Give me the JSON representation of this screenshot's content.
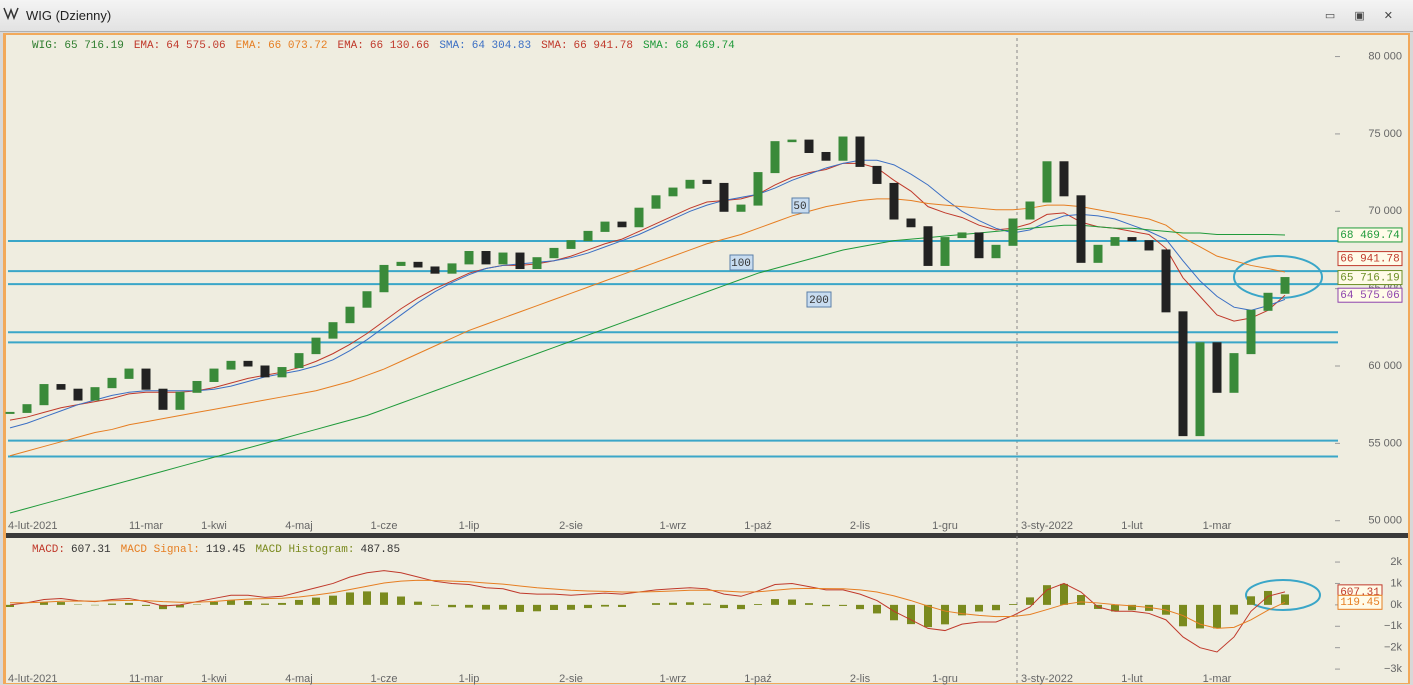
{
  "window": {
    "title": "WIG (Dzienny)"
  },
  "chart_data": [
    {
      "type": "candlestick",
      "legend_items": [
        {
          "name": "WIG:",
          "label": "65 716.19",
          "color": "#2e7d2e"
        },
        {
          "name": "EMA:",
          "label": "64 575.06",
          "color": "#c0392b"
        },
        {
          "name": "EMA:",
          "label": "66 073.72",
          "color": "#e67e22"
        },
        {
          "name": "EMA:",
          "label": "66 130.66",
          "color": "#c0392b"
        },
        {
          "name": "SMA:",
          "label": "64 304.83",
          "color": "#3b6fc4"
        },
        {
          "name": "SMA:",
          "label": "66 941.78",
          "color": "#c0392b"
        },
        {
          "name": "SMA:",
          "label": "68 469.74",
          "color": "#1f9a3a"
        }
      ],
      "categories": [
        "4-lut-2021",
        null,
        null,
        null,
        null,
        null,
        null,
        null,
        "11-mar",
        null,
        null,
        null,
        "1-kwi",
        null,
        null,
        null,
        null,
        "4-maj",
        null,
        null,
        null,
        null,
        "1-cze",
        null,
        null,
        null,
        null,
        "1-lip",
        null,
        null,
        null,
        null,
        null,
        "2-sie",
        null,
        null,
        null,
        null,
        null,
        "1-wrz",
        null,
        null,
        null,
        null,
        "1-paź",
        null,
        null,
        null,
        null,
        null,
        "2-lis",
        null,
        null,
        null,
        null,
        "1-gru",
        null,
        null,
        null,
        null,
        null,
        "3-sty-2022",
        null,
        null,
        null,
        null,
        "1-lut",
        null,
        null,
        null,
        null,
        "1-mar",
        null,
        null,
        null,
        null
      ],
      "closes": [
        57000,
        57500,
        58800,
        58500,
        57800,
        58600,
        59200,
        59800,
        58500,
        57200,
        58300,
        59000,
        59800,
        60300,
        60000,
        59300,
        59900,
        60800,
        61800,
        62800,
        63800,
        64800,
        66500,
        66700,
        66400,
        66000,
        66600,
        67400,
        66600,
        67300,
        66300,
        67000,
        67600,
        68100,
        68700,
        69300,
        69000,
        70200,
        71000,
        71500,
        72000,
        71800,
        70000,
        70400,
        72500,
        74500,
        74600,
        73800,
        73300,
        74800,
        72900,
        71800,
        69500,
        69000,
        66500,
        68300,
        68600,
        67000,
        67800,
        69500,
        70600,
        73200,
        71000,
        66700,
        67800,
        68300,
        68100,
        67500,
        63500,
        55500,
        61500,
        58300,
        60800,
        63600,
        64700,
        65716.19
      ],
      "up_color": "#3a8a3a",
      "down_color": "#222222",
      "lines": [
        {
          "color": "#c0392b",
          "values": [
            56500,
            56700,
            57000,
            57300,
            57500,
            57700,
            57900,
            58200,
            58300,
            58300,
            58300,
            58400,
            58600,
            58900,
            59200,
            59400,
            59600,
            59900,
            60300,
            60800,
            61400,
            62100,
            62900,
            63700,
            64400,
            65000,
            65500,
            66000,
            66300,
            66500,
            66500,
            66600,
            66800,
            67100,
            67500,
            67900,
            68200,
            68700,
            69200,
            69700,
            70200,
            70600,
            70700,
            70800,
            71100,
            71700,
            72200,
            72500,
            72700,
            73100,
            73100,
            72800,
            72000,
            71300,
            70300,
            69900,
            69600,
            69100,
            68800,
            68900,
            69200,
            69800,
            69900,
            69300,
            69000,
            68900,
            68700,
            68500,
            67600,
            65700,
            64500,
            63300,
            62900,
            63100,
            63600,
            64575.06
          ]
        },
        {
          "color": "#3b6fc4",
          "values": [
            56000,
            56300,
            56700,
            57100,
            57500,
            57800,
            58100,
            58300,
            58400,
            58400,
            58400,
            58400,
            58500,
            58700,
            59000,
            59300,
            59500,
            59700,
            60000,
            60400,
            61000,
            61700,
            62500,
            63300,
            64100,
            64800,
            65400,
            65900,
            66300,
            66500,
            66600,
            66700,
            66800,
            67000,
            67300,
            67700,
            68100,
            68500,
            69000,
            69500,
            70000,
            70400,
            70700,
            70900,
            71100,
            71500,
            72000,
            72400,
            72800,
            73100,
            73300,
            73300,
            73000,
            72400,
            71700,
            70800,
            70000,
            69400,
            68900,
            68600,
            68800,
            69300,
            69700,
            69800,
            69700,
            69500,
            69100,
            68700,
            68200,
            66800,
            65500,
            64500,
            63800,
            63600,
            63900,
            64304.83
          ]
        },
        {
          "color": "#e67e22",
          "values": [
            54200,
            54500,
            54800,
            55100,
            55400,
            55700,
            55900,
            56200,
            56400,
            56600,
            56800,
            57000,
            57200,
            57400,
            57600,
            57800,
            58000,
            58200,
            58400,
            58700,
            59000,
            59400,
            59800,
            60300,
            60800,
            61300,
            61800,
            62300,
            62700,
            63100,
            63500,
            63900,
            64300,
            64700,
            65100,
            65500,
            65900,
            66300,
            66700,
            67100,
            67500,
            67900,
            68200,
            68500,
            68900,
            69300,
            69700,
            70000,
            70300,
            70500,
            70700,
            70800,
            70800,
            70700,
            70500,
            70400,
            70300,
            70200,
            70100,
            70100,
            70200,
            70400,
            70400,
            70300,
            70100,
            69900,
            69700,
            69500,
            69100,
            68300,
            67700,
            67100,
            66800,
            66500,
            66300,
            66073.72
          ]
        },
        {
          "color": "#1f9a3a",
          "values": [
            50500,
            50800,
            51100,
            51400,
            51700,
            52000,
            52300,
            52600,
            52900,
            53200,
            53500,
            53800,
            54100,
            54400,
            54700,
            55000,
            55300,
            55600,
            55900,
            56200,
            56500,
            56800,
            57200,
            57600,
            58000,
            58400,
            58800,
            59200,
            59600,
            60000,
            60400,
            60800,
            61200,
            61600,
            62000,
            62400,
            62800,
            63200,
            63600,
            64000,
            64400,
            64800,
            65200,
            65600,
            66000,
            66300,
            66600,
            66900,
            67200,
            67500,
            67700,
            67900,
            68100,
            68200,
            68300,
            68400,
            68500,
            68600,
            68700,
            68800,
            68900,
            69000,
            69100,
            69100,
            69000,
            68900,
            68900,
            68800,
            68700,
            68600,
            68600,
            68500,
            68500,
            68500,
            68500,
            68469.74
          ]
        }
      ],
      "hlines": {
        "color": "#3aa6c8",
        "values": [
          68080,
          66130,
          65290,
          62180,
          61530,
          55180,
          54150
        ]
      },
      "annotations": [
        "50",
        "100",
        "200"
      ],
      "tags": [
        {
          "value": 68469.74,
          "label": "68 469.74",
          "color": "#1f9a3a"
        },
        {
          "value": 66941.78,
          "label": "66 941.78",
          "color": "#c0392b"
        },
        {
          "value": 65716.19,
          "label": "65 716.19",
          "color": "#6b8e23"
        },
        {
          "value": 64575.06,
          "label": "64 575.06",
          "color": "#8e44ad"
        }
      ],
      "ylim": [
        49400,
        81200
      ],
      "yticks": [
        {
          "value": 50000,
          "label": "50 000"
        },
        {
          "value": 55000,
          "label": "55 000"
        },
        {
          "value": 60000,
          "label": "60 000"
        },
        {
          "value": 65000,
          "label": "65 000"
        },
        {
          "value": 70000,
          "label": "70 000"
        },
        {
          "value": 75000,
          "label": "75 000"
        },
        {
          "value": 80000,
          "label": "80 000"
        }
      ]
    },
    {
      "type": "macd",
      "series": [
        {
          "name": "MACD:",
          "color": "#c0392b",
          "values": [
            0,
            100,
            250,
            300,
            200,
            150,
            250,
            300,
            150,
            -50,
            0,
            150,
            300,
            450,
            450,
            350,
            400,
            600,
            800,
            1000,
            1300,
            1500,
            1600,
            1500,
            1300,
            1100,
            1000,
            950,
            800,
            750,
            550,
            500,
            500,
            450,
            500,
            550,
            500,
            600,
            700,
            750,
            800,
            750,
            500,
            400,
            650,
            950,
            1000,
            850,
            700,
            700,
            500,
            200,
            -300,
            -700,
            -1100,
            -1200,
            -900,
            -800,
            -800,
            -500,
            -100,
            700,
            1000,
            600,
            -100,
            -300,
            -300,
            -400,
            -700,
            -1500,
            -2000,
            -2200,
            -1500,
            -300,
            400,
            607.31
          ]
        },
        {
          "name": "MACD Signal:",
          "color": "#e67e22",
          "values": [
            100,
            100,
            130,
            170,
            180,
            170,
            190,
            210,
            200,
            150,
            120,
            130,
            160,
            220,
            270,
            290,
            310,
            370,
            460,
            570,
            720,
            870,
            1020,
            1110,
            1150,
            1140,
            1110,
            1080,
            1020,
            970,
            880,
            800,
            740,
            680,
            650,
            630,
            600,
            600,
            620,
            650,
            680,
            690,
            650,
            600,
            610,
            680,
            750,
            770,
            760,
            750,
            700,
            600,
            420,
            200,
            -60,
            -290,
            -410,
            -490,
            -550,
            -540,
            -450,
            -220,
            20,
            140,
            90,
            10,
            -50,
            -120,
            -240,
            -500,
            -900,
            -1100,
            -1050,
            -700,
            -250,
            119.45
          ]
        },
        {
          "name": "MACD Histogram:",
          "color": "#7a8a1e",
          "values": [
            -100,
            0,
            120,
            130,
            20,
            -20,
            60,
            90,
            -50,
            -200,
            -120,
            20,
            140,
            230,
            180,
            60,
            90,
            230,
            340,
            430,
            580,
            630,
            580,
            390,
            150,
            -40,
            -110,
            -130,
            -220,
            -220,
            -330,
            -300,
            -240,
            -230,
            -150,
            -80,
            -100,
            0,
            80,
            100,
            120,
            60,
            -150,
            -200,
            40,
            270,
            250,
            80,
            -60,
            -50,
            -200,
            -400,
            -720,
            -900,
            -1040,
            -910,
            -490,
            -310,
            -250,
            40,
            350,
            920,
            980,
            460,
            -190,
            -310,
            -250,
            -280,
            -460,
            -1000,
            -1100,
            -1100,
            -450,
            400,
            650,
            487.85
          ]
        }
      ],
      "ylim": [
        -3650,
        3030
      ],
      "yticks": [
        {
          "value": -3000,
          "label": "−3k"
        },
        {
          "value": -2000,
          "label": "−2k"
        },
        {
          "value": -1000,
          "label": "−1k"
        },
        {
          "value": 0,
          "label": "0k"
        },
        {
          "value": 1000,
          "label": "1k"
        },
        {
          "value": 2000,
          "label": "2k"
        }
      ]
    }
  ]
}
